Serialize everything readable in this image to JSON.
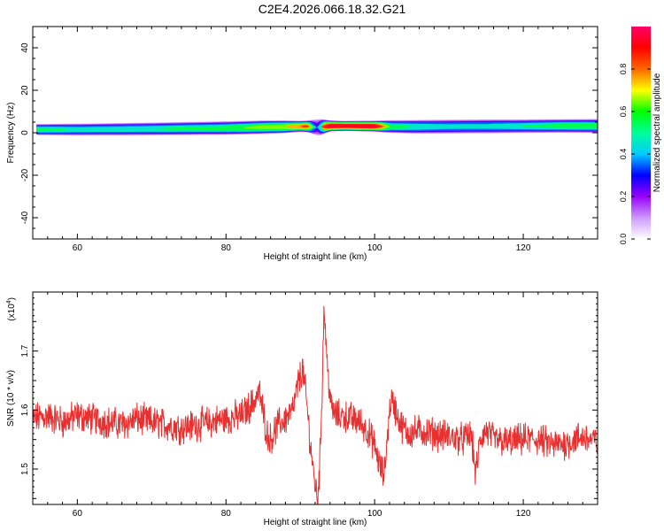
{
  "figure_title": "C2E4.2026.066.18.32.G21",
  "chart_data": [
    {
      "type": "heatmap",
      "xlabel": "Height of straight line (km)",
      "ylabel": "Frequency (Hz)",
      "xlim": [
        54,
        130
      ],
      "ylim": [
        -50,
        50
      ],
      "xticks": [
        60,
        80,
        100,
        120
      ],
      "yticks": [
        -40,
        -20,
        0,
        20,
        40
      ],
      "colorbar": {
        "label": "Normalized spectral amplitude",
        "range": [
          0,
          1
        ],
        "ticks": [
          "0.0",
          "0.2",
          "0.4",
          "0.6",
          "0.8"
        ],
        "colormap": [
          "#ffffff",
          "#cc99ff",
          "#9900ff",
          "#0000ff",
          "#00ccff",
          "#00ff99",
          "#00ff00",
          "#ffff00",
          "#ff6600",
          "#ff0000",
          "#ff0066"
        ]
      },
      "band": {
        "x": [
          54.5,
          60,
          70,
          80,
          85,
          88,
          90,
          91,
          92,
          92.5,
          93,
          94,
          96,
          100,
          101,
          102,
          105,
          110,
          115,
          120,
          125,
          130
        ],
        "center_hz": [
          1.5,
          1.5,
          1.8,
          2.2,
          2.6,
          2.8,
          3.0,
          3.0,
          2.6,
          2.5,
          2.8,
          3.2,
          3.2,
          3.1,
          3.0,
          2.9,
          2.8,
          2.9,
          3.0,
          3.1,
          3.2,
          3.2
        ],
        "halfwidth_hz": [
          2.6,
          2.8,
          3.0,
          3.2,
          3.2,
          3.0,
          2.6,
          2.8,
          3.6,
          4.0,
          3.6,
          2.6,
          2.4,
          2.6,
          2.8,
          3.0,
          3.2,
          3.3,
          3.3,
          3.2,
          3.2,
          3.3
        ],
        "peak_amplitude": [
          0.55,
          0.48,
          0.5,
          0.55,
          0.65,
          0.7,
          0.8,
          0.85,
          0.3,
          0.25,
          0.8,
          0.98,
          0.98,
          0.98,
          0.8,
          0.55,
          0.5,
          0.45,
          0.45,
          0.5,
          0.55,
          0.55
        ]
      }
    },
    {
      "type": "line",
      "xlabel": "Height of straight line (km)",
      "ylabel": "SNR (10 * v/v)",
      "yscale_label": "(x10",
      "yscale_exp": "4",
      "yscale_close": ")",
      "xlim": [
        54,
        130
      ],
      "ylim": [
        1.44,
        1.8
      ],
      "xticks": [
        60,
        80,
        100,
        120
      ],
      "yticks": [
        "1.5",
        "1.6",
        "1.7"
      ],
      "ytick_values": [
        1.5,
        1.6,
        1.7
      ],
      "series": [
        {
          "color": "#e83030",
          "x": [
            54,
            56,
            58,
            60,
            62,
            64,
            66,
            68,
            70,
            72,
            74,
            76,
            78,
            80,
            82,
            83.5,
            84.5,
            85.5,
            86,
            87,
            88,
            89,
            89.8,
            90.3,
            90.8,
            91.3,
            91.8,
            92.3,
            92.6,
            92.9,
            93.2,
            93.6,
            94.2,
            95,
            96,
            97,
            98,
            99,
            100,
            100.8,
            101.3,
            101.8,
            102.2,
            102.8,
            103.5,
            104.5,
            106,
            108,
            110,
            112,
            113,
            113.6,
            114.2,
            115,
            116,
            118,
            120,
            122,
            124,
            126,
            128,
            130
          ],
          "values": [
            1.585,
            1.59,
            1.58,
            1.59,
            1.585,
            1.58,
            1.575,
            1.585,
            1.58,
            1.575,
            1.57,
            1.575,
            1.58,
            1.585,
            1.59,
            1.61,
            1.63,
            1.56,
            1.55,
            1.575,
            1.585,
            1.6,
            1.65,
            1.67,
            1.62,
            1.55,
            1.49,
            1.45,
            1.5,
            1.62,
            1.78,
            1.68,
            1.6,
            1.59,
            1.59,
            1.585,
            1.58,
            1.565,
            1.54,
            1.5,
            1.49,
            1.57,
            1.62,
            1.6,
            1.575,
            1.56,
            1.565,
            1.56,
            1.555,
            1.55,
            1.56,
            1.49,
            1.55,
            1.565,
            1.55,
            1.545,
            1.55,
            1.55,
            1.54,
            1.545,
            1.555,
            1.545
          ]
        }
      ]
    }
  ]
}
